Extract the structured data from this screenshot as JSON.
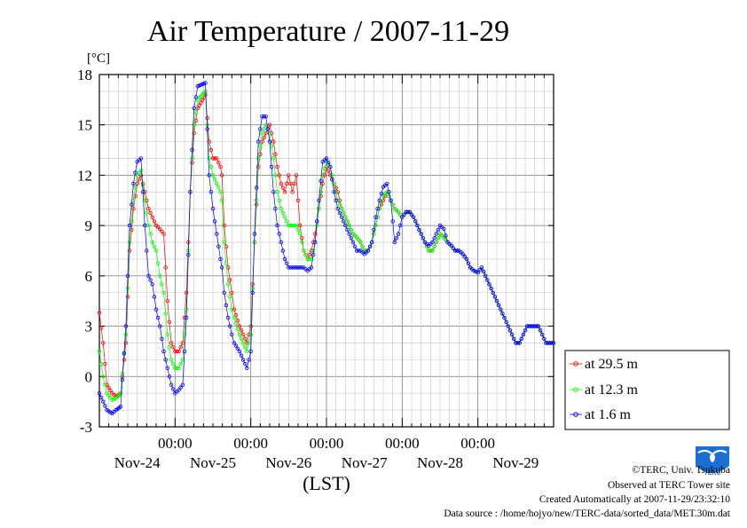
{
  "chart_data": {
    "type": "line",
    "title": "Air Temperature / 2007-11-29",
    "ylabel": "[°C]",
    "xlabel": "(LST)",
    "ylim": [
      -3,
      18
    ],
    "yticks": [
      -3,
      0,
      3,
      6,
      9,
      12,
      15,
      18
    ],
    "xlim": [
      0,
      6
    ],
    "xtick_positions": [
      1,
      2,
      3,
      4,
      5
    ],
    "xtick_time_label": "00:00",
    "day_labels": [
      "Nov-24",
      "Nov-25",
      "Nov-26",
      "Nov-27",
      "Nov-28",
      "Nov-29"
    ],
    "grid": true,
    "legend_position": "right",
    "series": [
      {
        "name": "at 29.5 m",
        "color": "#ff0000",
        "x": [
          0.0,
          0.05,
          0.1,
          0.17,
          0.22,
          0.28,
          0.35,
          0.4,
          0.45,
          0.5,
          0.55,
          0.6,
          0.65,
          0.7,
          0.75,
          0.8,
          0.85,
          0.9,
          0.95,
          1.0,
          1.05,
          1.1,
          1.15,
          1.2,
          1.25,
          1.3,
          1.4,
          1.45,
          1.5,
          1.55,
          1.6,
          1.62,
          1.65,
          1.7,
          1.75,
          1.78,
          1.85,
          1.9,
          1.95,
          2.0,
          2.05,
          2.1,
          2.15,
          2.2,
          2.25,
          2.3,
          2.35,
          2.4,
          2.45,
          2.5,
          2.55,
          2.6,
          2.65,
          2.7,
          2.75,
          2.8,
          2.85,
          2.9,
          2.95,
          3.0,
          3.05,
          3.1,
          3.15,
          3.2,
          3.25,
          3.3,
          3.35,
          3.4,
          3.45,
          3.5,
          3.55,
          3.6,
          3.65,
          3.7,
          3.75,
          3.8,
          3.85,
          3.9,
          3.95,
          4.0,
          4.05,
          4.1,
          4.15,
          4.2,
          4.25,
          4.3,
          4.35,
          4.4,
          4.45,
          4.5,
          4.55,
          4.6,
          4.65,
          4.7,
          4.75,
          4.8,
          4.85,
          4.9,
          4.95,
          5.0,
          5.05,
          5.1,
          5.15,
          5.2,
          5.25,
          5.3,
          5.35,
          5.4,
          5.45,
          5.5,
          5.55,
          5.6,
          5.65,
          5.7,
          5.75,
          5.8,
          5.85,
          5.9,
          5.95,
          6.0
        ],
        "y": [
          3.8,
          2.0,
          -0.5,
          -1.0,
          -1.2,
          -1.0,
          2.0,
          7.5,
          10.0,
          11.5,
          12.0,
          11.0,
          10.0,
          9.5,
          9.0,
          8.8,
          8.5,
          4.5,
          2.0,
          1.5,
          1.5,
          2.0,
          5.0,
          11.0,
          14.5,
          16.0,
          16.8,
          14.0,
          13.0,
          13.0,
          12.5,
          12.0,
          9.0,
          6.5,
          5.0,
          4.0,
          3.0,
          2.5,
          2.0,
          3.0,
          8.0,
          12.5,
          14.0,
          14.5,
          15.0,
          14.0,
          12.5,
          11.5,
          11.0,
          12.0,
          11.0,
          12.0,
          9.0,
          7.5,
          7.0,
          7.5,
          8.5,
          10.0,
          11.5,
          12.5,
          12.0,
          11.5,
          11.0,
          10.0,
          9.5,
          9.0,
          8.5,
          8.3,
          8.0,
          7.5,
          7.5,
          8.0,
          9.0,
          10.0,
          10.5,
          11.0,
          10.5,
          10.0,
          9.8,
          9.5,
          9.8,
          9.8,
          9.5,
          9.0,
          8.5,
          8.0,
          7.5,
          7.5,
          8.0,
          8.5,
          8.3,
          8.0,
          7.8,
          7.5,
          7.5,
          7.3,
          7.0,
          6.5,
          6.3,
          6.2,
          6.5,
          6.0,
          5.5,
          5.0,
          4.5,
          4.0,
          3.5,
          3.0,
          2.5,
          2.0,
          2.0,
          2.5,
          3.0,
          3.0,
          3.0,
          3.0,
          2.5,
          2.0,
          2.0,
          2.0
        ]
      },
      {
        "name": "at 12.3 m",
        "color": "#00ff00",
        "x": [
          0.0,
          0.05,
          0.1,
          0.17,
          0.22,
          0.28,
          0.35,
          0.4,
          0.45,
          0.5,
          0.55,
          0.6,
          0.65,
          0.7,
          0.75,
          0.8,
          0.85,
          0.9,
          0.95,
          1.0,
          1.05,
          1.1,
          1.15,
          1.2,
          1.25,
          1.3,
          1.4,
          1.45,
          1.5,
          1.55,
          1.6,
          1.62,
          1.65,
          1.7,
          1.75,
          1.78,
          1.85,
          1.9,
          1.95,
          2.0,
          2.05,
          2.1,
          2.15,
          2.2,
          2.25,
          2.3,
          2.35,
          2.4,
          2.45,
          2.5,
          2.55,
          2.6,
          2.65,
          2.7,
          2.75,
          2.8,
          2.85,
          2.9,
          2.95,
          3.0,
          3.05,
          3.1,
          3.15,
          3.2,
          3.25,
          3.3,
          3.35,
          3.4,
          3.45,
          3.5,
          3.55,
          3.6,
          3.65,
          3.7,
          3.75,
          3.8,
          3.85,
          3.9,
          3.95,
          4.0,
          4.05,
          4.1,
          4.15,
          4.2,
          4.25,
          4.3,
          4.35,
          4.4,
          4.45,
          4.5,
          4.55,
          4.6,
          4.65,
          4.7,
          4.75,
          4.8,
          4.85,
          4.9,
          4.95,
          5.0,
          5.05,
          5.1,
          5.15,
          5.2,
          5.25,
          5.3,
          5.35,
          5.4,
          5.45,
          5.5,
          5.55,
          5.6,
          5.65,
          5.7,
          5.75,
          5.8,
          5.85,
          5.9,
          5.95,
          6.0
        ],
        "y": [
          1.5,
          0.0,
          -1.0,
          -1.4,
          -1.3,
          -1.0,
          2.5,
          8.0,
          10.5,
          12.0,
          12.3,
          10.5,
          9.0,
          8.0,
          7.5,
          6.0,
          5.0,
          2.5,
          1.0,
          0.5,
          0.5,
          1.0,
          4.0,
          11.0,
          15.0,
          16.5,
          17.0,
          13.0,
          12.0,
          11.5,
          11.0,
          10.5,
          8.0,
          5.5,
          4.0,
          3.5,
          2.5,
          2.0,
          1.5,
          2.5,
          8.0,
          13.0,
          14.5,
          15.0,
          14.5,
          13.0,
          11.0,
          10.0,
          9.5,
          9.0,
          9.0,
          9.0,
          8.5,
          7.5,
          7.0,
          7.0,
          8.0,
          10.0,
          12.0,
          12.8,
          12.5,
          11.5,
          10.5,
          10.0,
          9.5,
          9.0,
          8.5,
          8.3,
          8.0,
          7.5,
          7.5,
          8.0,
          9.0,
          10.0,
          10.8,
          11.0,
          10.5,
          10.0,
          9.8,
          9.5,
          9.8,
          9.8,
          9.5,
          9.0,
          8.5,
          8.0,
          7.5,
          7.5,
          8.0,
          8.5,
          8.3,
          8.0,
          7.8,
          7.5,
          7.5,
          7.3,
          7.0,
          6.5,
          6.3,
          6.2,
          6.5,
          6.0,
          5.5,
          5.0,
          4.5,
          4.0,
          3.5,
          3.0,
          2.5,
          2.0,
          2.0,
          2.5,
          3.0,
          3.0,
          3.0,
          3.0,
          2.5,
          2.0,
          2.0,
          2.0
        ]
      },
      {
        "name": "at 1.6 m",
        "color": "#0000ff",
        "x": [
          0.0,
          0.05,
          0.1,
          0.17,
          0.22,
          0.28,
          0.35,
          0.4,
          0.45,
          0.5,
          0.55,
          0.6,
          0.65,
          0.7,
          0.75,
          0.8,
          0.85,
          0.9,
          0.95,
          1.0,
          1.05,
          1.1,
          1.15,
          1.2,
          1.25,
          1.3,
          1.4,
          1.45,
          1.5,
          1.55,
          1.6,
          1.62,
          1.65,
          1.7,
          1.75,
          1.78,
          1.85,
          1.9,
          1.95,
          2.0,
          2.05,
          2.1,
          2.15,
          2.2,
          2.25,
          2.3,
          2.35,
          2.4,
          2.45,
          2.5,
          2.55,
          2.6,
          2.65,
          2.7,
          2.75,
          2.8,
          2.85,
          2.9,
          2.95,
          3.0,
          3.05,
          3.1,
          3.15,
          3.2,
          3.25,
          3.3,
          3.35,
          3.4,
          3.45,
          3.5,
          3.55,
          3.6,
          3.65,
          3.7,
          3.75,
          3.8,
          3.85,
          3.9,
          3.95,
          4.0,
          4.05,
          4.1,
          4.15,
          4.2,
          4.25,
          4.3,
          4.35,
          4.4,
          4.45,
          4.5,
          4.55,
          4.6,
          4.65,
          4.7,
          4.75,
          4.8,
          4.85,
          4.9,
          4.95,
          5.0,
          5.05,
          5.1,
          5.15,
          5.2,
          5.25,
          5.3,
          5.35,
          5.4,
          5.45,
          5.5,
          5.55,
          5.6,
          5.65,
          5.7,
          5.75,
          5.8,
          5.85,
          5.9,
          5.95,
          6.0
        ],
        "y": [
          -1.0,
          -1.5,
          -2.0,
          -2.2,
          -2.0,
          -1.8,
          3.0,
          9.0,
          11.5,
          12.8,
          13.0,
          9.0,
          6.0,
          5.5,
          4.0,
          3.0,
          1.5,
          0.5,
          -0.5,
          -1.0,
          -0.8,
          -0.5,
          3.5,
          11.0,
          16.0,
          17.3,
          17.5,
          12.0,
          10.0,
          8.5,
          7.0,
          6.5,
          5.0,
          3.5,
          2.5,
          2.0,
          1.5,
          1.0,
          0.5,
          1.5,
          8.5,
          14.0,
          15.5,
          15.5,
          14.0,
          11.0,
          9.0,
          8.0,
          7.0,
          6.5,
          6.5,
          6.5,
          6.5,
          6.5,
          6.3,
          6.5,
          8.0,
          10.5,
          12.8,
          13.0,
          12.5,
          11.0,
          10.0,
          9.5,
          9.0,
          8.5,
          8.0,
          7.5,
          7.5,
          7.3,
          7.5,
          8.0,
          9.5,
          10.5,
          11.3,
          11.5,
          10.5,
          8.0,
          8.5,
          9.5,
          9.8,
          9.8,
          9.5,
          9.0,
          8.5,
          8.0,
          7.8,
          8.0,
          8.5,
          9.0,
          8.8,
          8.0,
          7.8,
          7.5,
          7.5,
          7.3,
          7.0,
          6.5,
          6.3,
          6.2,
          6.5,
          6.0,
          5.5,
          5.0,
          4.5,
          4.0,
          3.5,
          3.0,
          2.5,
          2.0,
          2.0,
          2.5,
          3.0,
          3.0,
          3.0,
          3.0,
          2.5,
          2.0,
          2.0,
          2.0
        ]
      }
    ]
  },
  "credits": {
    "copyright": "©TERC, Univ. Tsukuba",
    "observed": "Observed at TERC Tower site",
    "created": "Created Automatically at 2007-11-29/23:32:10",
    "source": "Data source : /home/hojyo/new/TERC-data/sorted_data/MET.30m.dat",
    "logo_text": "TERC"
  }
}
